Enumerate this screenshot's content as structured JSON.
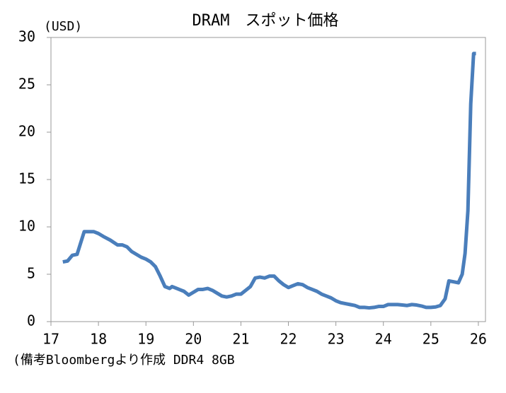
{
  "chart_data": {
    "type": "line",
    "title": "DRAM　スポット価格",
    "y_label": "(USD)",
    "note": "(備考Bloombergより作成 DDR4 8GB",
    "x": [
      17.25,
      17.35,
      17.45,
      17.55,
      17.7,
      17.8,
      17.9,
      18.0,
      18.1,
      18.25,
      18.4,
      18.5,
      18.6,
      18.7,
      18.8,
      18.9,
      19.0,
      19.1,
      19.2,
      19.3,
      19.4,
      19.5,
      19.55,
      19.65,
      19.8,
      19.9,
      20.0,
      20.1,
      20.2,
      20.3,
      20.4,
      20.5,
      20.6,
      20.7,
      20.8,
      20.9,
      21.0,
      21.1,
      21.2,
      21.3,
      21.4,
      21.5,
      21.6,
      21.7,
      21.8,
      21.9,
      22.0,
      22.1,
      22.2,
      22.3,
      22.4,
      22.5,
      22.6,
      22.7,
      22.8,
      22.9,
      23.0,
      23.1,
      23.2,
      23.3,
      23.4,
      23.5,
      23.6,
      23.7,
      23.8,
      23.9,
      24.0,
      24.1,
      24.2,
      24.3,
      24.4,
      24.5,
      24.6,
      24.7,
      24.8,
      24.9,
      25.0,
      25.1,
      25.2,
      25.3,
      25.38,
      25.48,
      25.58,
      25.66,
      25.72,
      25.78,
      25.84,
      25.9,
      25.95
    ],
    "series": [
      {
        "name": "DDR4 8GB",
        "color": "#4a7ebb",
        "values": [
          6.3,
          6.4,
          7.0,
          7.1,
          9.5,
          9.5,
          9.5,
          9.3,
          9.0,
          8.6,
          8.1,
          8.1,
          7.9,
          7.4,
          7.1,
          6.8,
          6.6,
          6.3,
          5.8,
          4.8,
          3.7,
          3.5,
          3.7,
          3.5,
          3.2,
          2.8,
          3.1,
          3.4,
          3.4,
          3.5,
          3.3,
          3.0,
          2.7,
          2.6,
          2.7,
          2.9,
          2.9,
          3.3,
          3.7,
          4.6,
          4.7,
          4.6,
          4.8,
          4.8,
          4.3,
          3.9,
          3.6,
          3.8,
          4.0,
          3.9,
          3.6,
          3.4,
          3.2,
          2.9,
          2.7,
          2.5,
          2.2,
          2.0,
          1.9,
          1.8,
          1.7,
          1.5,
          1.5,
          1.45,
          1.5,
          1.6,
          1.6,
          1.8,
          1.8,
          1.8,
          1.75,
          1.7,
          1.8,
          1.75,
          1.65,
          1.5,
          1.5,
          1.55,
          1.7,
          2.4,
          4.3,
          4.2,
          4.1,
          5.0,
          7.2,
          11.7,
          23.0,
          28.3,
          28.3
        ]
      }
    ],
    "xlim": [
      17,
      26.15
    ],
    "xticks": [
      17,
      18,
      19,
      20,
      21,
      22,
      23,
      24,
      25,
      26
    ],
    "ylim": [
      0,
      30
    ],
    "yticks": [
      0,
      5,
      10,
      15,
      20,
      25,
      30
    ]
  }
}
